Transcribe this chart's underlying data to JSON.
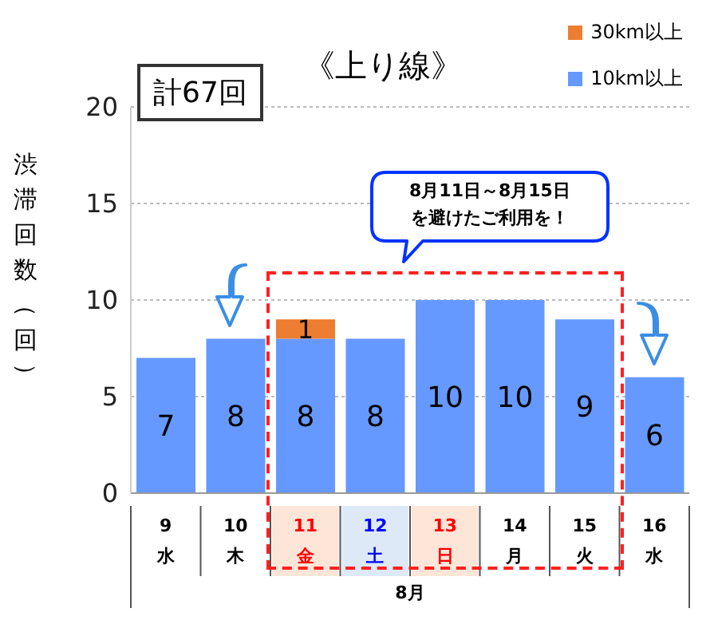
{
  "chart_data": {
    "type": "bar",
    "title": "《上り線》",
    "xlabel": "8月",
    "ylabel": "渋滞回数（回）",
    "categories": [
      "9\n水",
      "10\n木",
      "11\n金",
      "12\n土",
      "13\n日",
      "14\n月",
      "15\n火",
      "16\n水"
    ],
    "stacked": true,
    "series": [
      {
        "name": "10km以上",
        "color": "#6699ff",
        "values": [
          7,
          8,
          8,
          8,
          10,
          10,
          9,
          6
        ],
        "data_labels": true
      },
      {
        "name": "30km以上",
        "color": "#ed7d31",
        "values": [
          null,
          null,
          1,
          null,
          null,
          null,
          null,
          null
        ],
        "value_labels": [
          null,
          null,
          "1",
          null,
          null,
          null,
          null,
          null
        ]
      }
    ],
    "ylim": [
      0,
      20
    ],
    "yticks": [
      0,
      5,
      10,
      15,
      20
    ],
    "grid": "y",
    "legend": "top right",
    "annotations": [
      "計67回",
      "8月11日～8月15日を避けたご利用を！"
    ]
  }
}
